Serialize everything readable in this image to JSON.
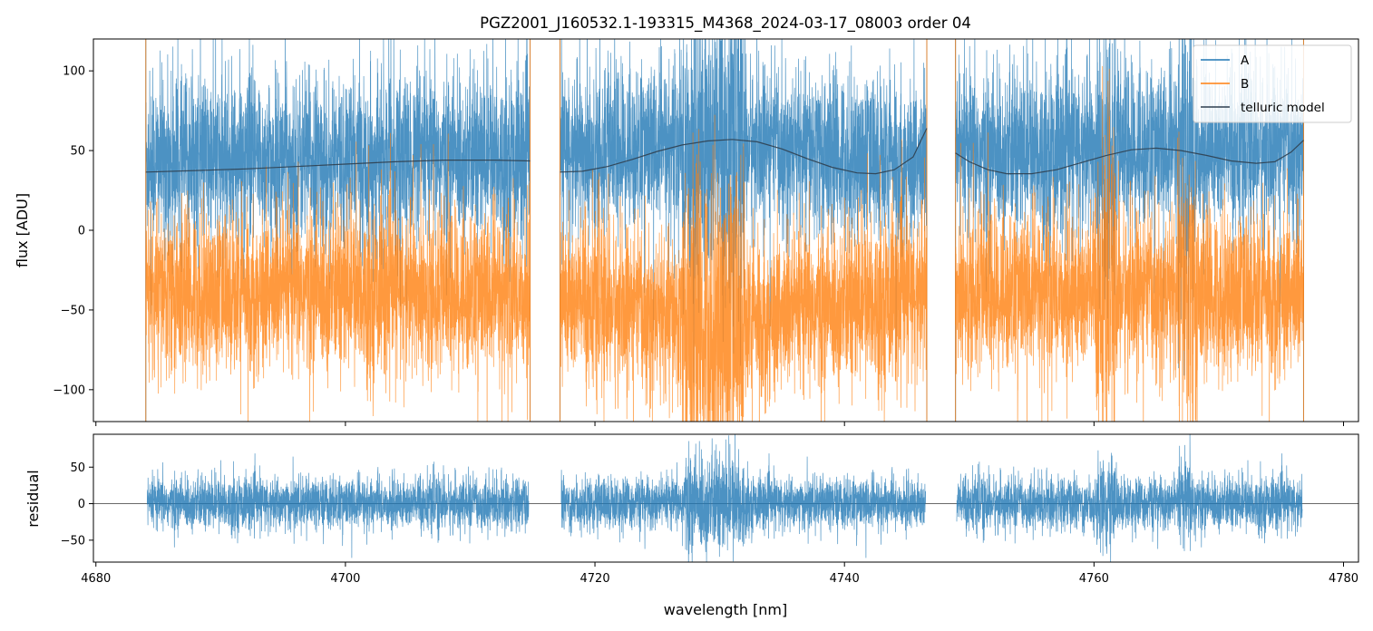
{
  "chart_data": [
    {
      "id": "flux",
      "type": "line",
      "title": "PGZ2001_J160532.1-193315_M4368_2024-03-17_08003  order 04",
      "xlabel": "",
      "ylabel": "flux [ADU]",
      "xlim": [
        4679.8,
        4781.2
      ],
      "ylim": [
        -120,
        120
      ],
      "yticks": [
        100,
        50,
        0,
        -50,
        -100
      ],
      "ytick_labels": [
        "100",
        "50",
        "0",
        "−50",
        "−100"
      ],
      "xticks": [
        4680,
        4700,
        4720,
        4740,
        4760,
        4780
      ],
      "xtick_labels_visible": false,
      "legend_position": "top-right",
      "segments": [
        [
          4684.0,
          4714.8
        ],
        [
          4717.2,
          4746.6
        ],
        [
          4748.9,
          4776.8
        ]
      ],
      "series": [
        {
          "name": "A",
          "label": "A",
          "color": "#1f77b4",
          "role": "noisy-spectrum",
          "segment_mean": [
            [
              4684.0,
              44
            ],
            [
              4700,
              45
            ],
            [
              4714.8,
              46
            ],
            [
              4717.2,
              48
            ],
            [
              4729,
              55
            ],
            [
              4746.6,
              42
            ],
            [
              4748.9,
              47
            ],
            [
              4764,
              52
            ],
            [
              4776.8,
              50
            ]
          ],
          "scatter": 26,
          "opacity": 0.8
        },
        {
          "name": "B",
          "label": "B",
          "color": "#ff7f0e",
          "role": "noisy-spectrum",
          "segment_mean": [
            [
              4684.0,
              -40
            ],
            [
              4700,
              -38
            ],
            [
              4714.8,
              -40
            ],
            [
              4717.2,
              -42
            ],
            [
              4729,
              -60
            ],
            [
              4746.6,
              -40
            ],
            [
              4748.9,
              -38
            ],
            [
              4764,
              -40
            ],
            [
              4776.8,
              -40
            ]
          ],
          "scatter": 26,
          "opacity": 0.8
        },
        {
          "name": "telluric model",
          "label": "telluric model",
          "color": "#2f3f4f",
          "role": "model",
          "points": [
            [
              4684.0,
              36.5
            ],
            [
              4688,
              37.5
            ],
            [
              4692,
              38.5
            ],
            [
              4696,
              40
            ],
            [
              4700,
              41.5
            ],
            [
              4704,
              43
            ],
            [
              4708,
              44
            ],
            [
              4712,
              44
            ],
            [
              4714.8,
              43.5
            ],
            [
              4717.2,
              36.5
            ],
            [
              4719,
              37
            ],
            [
              4721,
              40
            ],
            [
              4723,
              44.5
            ],
            [
              4725,
              49.5
            ],
            [
              4727,
              53.5
            ],
            [
              4729,
              56
            ],
            [
              4731,
              57
            ],
            [
              4733,
              55.5
            ],
            [
              4735,
              51
            ],
            [
              4737,
              45
            ],
            [
              4739,
              39.5
            ],
            [
              4741,
              36
            ],
            [
              4742.5,
              35.5
            ],
            [
              4744,
              38
            ],
            [
              4745.5,
              46
            ],
            [
              4746.6,
              64
            ],
            [
              4748.9,
              48.5
            ],
            [
              4750,
              43
            ],
            [
              4751.5,
              38
            ],
            [
              4753,
              35.5
            ],
            [
              4755,
              35.5
            ],
            [
              4757,
              38
            ],
            [
              4759,
              42.5
            ],
            [
              4761,
              47
            ],
            [
              4763,
              50.5
            ],
            [
              4765,
              51.5
            ],
            [
              4767,
              50
            ],
            [
              4769,
              47
            ],
            [
              4771,
              43.5
            ],
            [
              4773,
              42
            ],
            [
              4774.5,
              43
            ],
            [
              4775.8,
              49
            ],
            [
              4776.8,
              56.5
            ]
          ]
        }
      ]
    },
    {
      "id": "residual",
      "type": "line",
      "title": "",
      "xlabel": "wavelength [nm]",
      "ylabel": "residual",
      "xlim": [
        4679.8,
        4781.2
      ],
      "ylim": [
        -80,
        95
      ],
      "yticks": [
        50,
        0,
        -50
      ],
      "ytick_labels": [
        "50",
        "0",
        "−50"
      ],
      "xticks": [
        4680,
        4700,
        4720,
        4740,
        4760,
        4780
      ],
      "xtick_labels": [
        "4680",
        "4700",
        "4720",
        "4740",
        "4760",
        "4780"
      ],
      "zero_line": 0,
      "series": [
        {
          "name": "residual",
          "color": "#1f77b4",
          "role": "noisy-residual",
          "scatter": 18,
          "opacity": 0.8
        }
      ]
    }
  ]
}
